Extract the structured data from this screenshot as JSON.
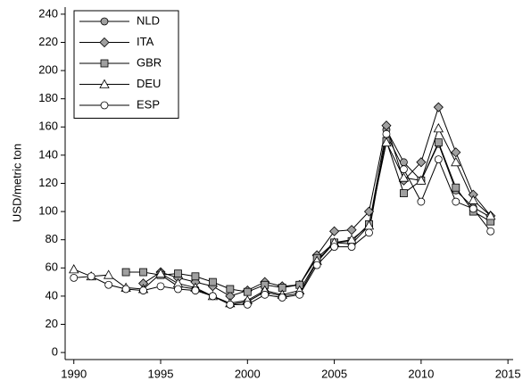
{
  "chart_data": {
    "type": "line",
    "y_label": "USD/metric ton",
    "x": [
      1990,
      1991,
      1992,
      1993,
      1994,
      1995,
      1996,
      1997,
      1998,
      1999,
      2000,
      2001,
      2002,
      2003,
      2004,
      2005,
      2006,
      2007,
      2008,
      2009,
      2010,
      2011,
      2012,
      2013,
      2014
    ],
    "series": [
      {
        "name": "NLD",
        "color": "#a0a0a0",
        "marker": "circle",
        "values": [
          null,
          null,
          null,
          null,
          null,
          55,
          47,
          45,
          40,
          34,
          36,
          43,
          40,
          42,
          64,
          78,
          77,
          90,
          158,
          135,
          122,
          148,
          115,
          103,
          96
        ]
      },
      {
        "name": "ITA",
        "color": "#a0a0a0",
        "marker": "diamond",
        "values": [
          null,
          null,
          null,
          null,
          49,
          57,
          53,
          50,
          47,
          40,
          44,
          50,
          47,
          48,
          69,
          86,
          87,
          100,
          161,
          122,
          135,
          174,
          142,
          112,
          97
        ]
      },
      {
        "name": "GBR",
        "color": "#a0a0a0",
        "marker": "square",
        "values": [
          null,
          null,
          null,
          57,
          57,
          55,
          56,
          54,
          50,
          45,
          43,
          48,
          46,
          48,
          67,
          78,
          79,
          91,
          150,
          113,
          122,
          149,
          117,
          100,
          93
        ]
      },
      {
        "name": "DEU",
        "color": "#ffffff",
        "marker": "triangle",
        "values": [
          59,
          54,
          55,
          46,
          45,
          56,
          49,
          46,
          40,
          35,
          37,
          44,
          41,
          44,
          65,
          78,
          80,
          90,
          149,
          124,
          122,
          159,
          135,
          108,
          97
        ]
      },
      {
        "name": "ESP",
        "color": "#ffffff",
        "marker": "circle",
        "values": [
          53,
          54,
          48,
          45,
          44,
          47,
          45,
          44,
          40,
          34,
          34,
          41,
          39,
          41,
          62,
          75,
          75,
          85,
          155,
          130,
          107,
          137,
          107,
          102,
          86
        ]
      }
    ],
    "xlim": [
      1989.5,
      2015.3
    ],
    "xticks": [
      1990,
      1995,
      2000,
      2005,
      2010,
      2015
    ],
    "ylim": [
      -5,
      245
    ],
    "yticks": [
      0,
      20,
      40,
      60,
      80,
      100,
      120,
      140,
      160,
      180,
      200,
      220,
      240
    ],
    "legend": "top-left"
  }
}
